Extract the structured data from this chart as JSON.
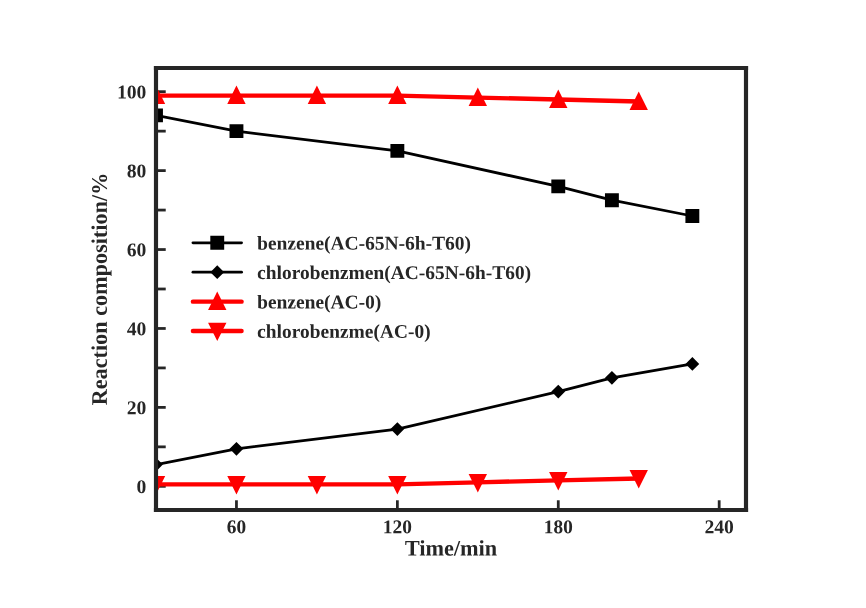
{
  "chart_data": {
    "type": "line",
    "xlabel": "Time/min",
    "ylabel": "Reaction composition/%",
    "xlim": [
      30,
      250
    ],
    "xticks": [
      60,
      120,
      180,
      240
    ],
    "ylim": [
      -6,
      106
    ],
    "yticks": [
      0,
      {
        "value": 10,
        "label": null
      },
      20,
      {
        "value": 30,
        "label": null
      },
      40,
      {
        "value": 50,
        "label": null
      },
      60,
      {
        "value": 70,
        "label": null
      },
      80,
      {
        "value": 90,
        "label": null
      },
      100
    ],
    "legend": "left",
    "grid": false,
    "series": [
      {
        "name": "benzene(AC-65N-6h-T60)",
        "color": "#000000",
        "marker": "square",
        "x": [
          30,
          60,
          120,
          180,
          200,
          230
        ],
        "values": [
          94,
          90,
          85,
          76,
          72.5,
          68.5
        ]
      },
      {
        "name": "chlorobenzmen(AC-65N-6h-T60)",
        "color": "#000000",
        "marker": "diamond",
        "x": [
          30,
          60,
          120,
          180,
          200,
          230
        ],
        "values": [
          5.5,
          9.5,
          14.5,
          24,
          27.5,
          31
        ]
      },
      {
        "name": "benzene(AC-0)",
        "color": "#ff0000",
        "marker": "triangle",
        "x": [
          30,
          60,
          90,
          120,
          150,
          180,
          210
        ],
        "values": [
          99,
          99,
          99,
          99,
          98.5,
          98,
          97.5
        ]
      },
      {
        "name": "chlorobenzme(AC-0)",
        "color": "#ff0000",
        "marker": "triangle_down",
        "x": [
          30,
          60,
          90,
          120,
          150,
          180,
          210
        ],
        "values": [
          0.5,
          0.5,
          0.5,
          0.5,
          1,
          1.5,
          2
        ]
      }
    ]
  }
}
